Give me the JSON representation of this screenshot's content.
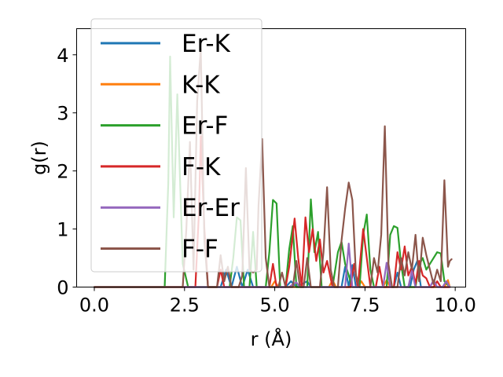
{
  "chart_data": {
    "type": "line",
    "title": "",
    "xlabel": "r (Å)",
    "ylabel": "g(r)",
    "xlim": [
      -0.49,
      10.29
    ],
    "ylim": [
      0,
      4.45
    ],
    "xticks": [
      0.0,
      2.5,
      5.0,
      7.5,
      10.0
    ],
    "xtick_labels": [
      "0.0",
      "2.5",
      "5.0",
      "7.5",
      "10.0"
    ],
    "yticks": [
      0,
      1,
      2,
      3,
      4
    ],
    "ytick_labels": [
      "0",
      "1",
      "2",
      "3",
      "4"
    ],
    "grid": false,
    "legend_position": "top-left",
    "series": [
      {
        "name": "Er-K",
        "color": "#1f77b4",
        "points": [
          [
            0.0,
            0
          ],
          [
            3.5,
            0
          ],
          [
            3.65,
            0.3
          ],
          [
            3.8,
            0
          ],
          [
            3.95,
            0.35
          ],
          [
            4.1,
            0
          ],
          [
            4.25,
            0.3
          ],
          [
            4.4,
            0
          ],
          [
            5.3,
            0
          ],
          [
            5.45,
            0.1
          ],
          [
            5.6,
            0
          ],
          [
            5.9,
            0.1
          ],
          [
            6.0,
            0
          ],
          [
            6.85,
            0
          ],
          [
            6.95,
            0.35
          ],
          [
            7.05,
            0
          ],
          [
            7.15,
            0.38
          ],
          [
            7.25,
            0
          ],
          [
            8.3,
            0
          ],
          [
            8.4,
            0.25
          ],
          [
            8.5,
            0
          ],
          [
            8.75,
            0
          ],
          [
            8.85,
            0.3
          ],
          [
            8.95,
            0.45
          ],
          [
            9.05,
            0
          ],
          [
            9.85,
            0
          ]
        ]
      },
      {
        "name": "K-K",
        "color": "#ff7f0e",
        "points": [
          [
            0.0,
            0
          ],
          [
            4.9,
            0
          ],
          [
            5.0,
            0.1
          ],
          [
            5.1,
            0
          ],
          [
            6.5,
            0
          ],
          [
            6.6,
            0.12
          ],
          [
            6.7,
            0
          ],
          [
            7.3,
            0
          ],
          [
            7.4,
            0.1
          ],
          [
            7.5,
            0
          ],
          [
            8.0,
            0
          ],
          [
            8.1,
            0.12
          ],
          [
            8.2,
            0
          ],
          [
            9.7,
            0
          ],
          [
            9.8,
            0.12
          ],
          [
            9.85,
            0
          ]
        ]
      },
      {
        "name": "Er-F",
        "color": "#2ca02c",
        "points": [
          [
            0.0,
            0
          ],
          [
            1.95,
            0
          ],
          [
            2.05,
            1.8
          ],
          [
            2.1,
            3.97
          ],
          [
            2.2,
            1.2
          ],
          [
            2.3,
            3.32
          ],
          [
            2.45,
            0.4
          ],
          [
            2.6,
            0
          ],
          [
            3.75,
            0
          ],
          [
            3.85,
            0.5
          ],
          [
            3.95,
            1.2
          ],
          [
            4.05,
            1.15
          ],
          [
            4.15,
            0
          ],
          [
            4.3,
            0
          ],
          [
            4.4,
            0.95
          ],
          [
            4.5,
            0
          ],
          [
            4.75,
            0
          ],
          [
            4.85,
            0.6
          ],
          [
            4.95,
            1.5
          ],
          [
            5.05,
            1.44
          ],
          [
            5.15,
            0
          ],
          [
            5.3,
            0
          ],
          [
            5.4,
            0.65
          ],
          [
            5.5,
            1.05
          ],
          [
            5.6,
            0
          ],
          [
            5.9,
            0
          ],
          [
            6.0,
            1.51
          ],
          [
            6.1,
            0.6
          ],
          [
            6.2,
            0.95
          ],
          [
            6.3,
            0
          ],
          [
            6.6,
            0
          ],
          [
            6.75,
            0.6
          ],
          [
            6.85,
            0.78
          ],
          [
            6.95,
            0.4
          ],
          [
            7.05,
            0.2
          ],
          [
            7.15,
            0
          ],
          [
            7.35,
            0
          ],
          [
            7.45,
            0.9
          ],
          [
            7.55,
            1.25
          ],
          [
            7.65,
            0.3
          ],
          [
            7.75,
            0
          ],
          [
            8.1,
            0
          ],
          [
            8.2,
            0.9
          ],
          [
            8.3,
            1.05
          ],
          [
            8.4,
            1.02
          ],
          [
            8.5,
            0.4
          ],
          [
            8.6,
            0
          ],
          [
            8.9,
            0
          ],
          [
            9.0,
            0.38
          ],
          [
            9.1,
            0.5
          ],
          [
            9.2,
            0.3
          ],
          [
            9.35,
            0.45
          ],
          [
            9.5,
            0.6
          ],
          [
            9.6,
            0.58
          ],
          [
            9.7,
            0.1
          ],
          [
            9.85,
            0
          ]
        ]
      },
      {
        "name": "F-K",
        "color": "#d62728",
        "points": [
          [
            0.0,
            0
          ],
          [
            2.8,
            0
          ],
          [
            2.9,
            1.3
          ],
          [
            2.95,
            2.6
          ],
          [
            3.05,
            1.0
          ],
          [
            3.15,
            0
          ],
          [
            3.4,
            0
          ],
          [
            3.5,
            0.3
          ],
          [
            3.6,
            0
          ],
          [
            4.85,
            0
          ],
          [
            4.95,
            0.4
          ],
          [
            5.05,
            0
          ],
          [
            5.3,
            0
          ],
          [
            5.4,
            0.35
          ],
          [
            5.55,
            1.18
          ],
          [
            5.65,
            0.5
          ],
          [
            5.75,
            0
          ],
          [
            5.85,
            1.2
          ],
          [
            5.95,
            0.6
          ],
          [
            6.05,
            1.0
          ],
          [
            6.15,
            0.45
          ],
          [
            6.25,
            0.82
          ],
          [
            6.35,
            0.25
          ],
          [
            6.45,
            0.45
          ],
          [
            6.6,
            0
          ],
          [
            7.1,
            0
          ],
          [
            7.2,
            0.4
          ],
          [
            7.3,
            0
          ],
          [
            7.45,
            1.0
          ],
          [
            7.55,
            0.5
          ],
          [
            7.65,
            0
          ],
          [
            7.8,
            0
          ],
          [
            7.9,
            0.35
          ],
          [
            8.0,
            0
          ],
          [
            8.3,
            0
          ],
          [
            8.4,
            0.6
          ],
          [
            8.5,
            0.3
          ],
          [
            8.6,
            0.7
          ],
          [
            8.7,
            0.2
          ],
          [
            8.8,
            0.35
          ],
          [
            8.9,
            0.05
          ],
          [
            9.0,
            0.45
          ],
          [
            9.1,
            0.2
          ],
          [
            9.2,
            0.15
          ],
          [
            9.3,
            0
          ],
          [
            9.4,
            0
          ],
          [
            9.5,
            0.1
          ],
          [
            9.6,
            0
          ],
          [
            9.85,
            0
          ]
        ]
      },
      {
        "name": "Er-Er",
        "color": "#9467bd",
        "points": [
          [
            0.0,
            0
          ],
          [
            5.4,
            0
          ],
          [
            5.5,
            0.05
          ],
          [
            5.6,
            0.08
          ],
          [
            5.7,
            0
          ],
          [
            6.95,
            0
          ],
          [
            7.05,
            0.75
          ],
          [
            7.15,
            0
          ],
          [
            8.0,
            0
          ],
          [
            8.1,
            0.42
          ],
          [
            8.2,
            0
          ],
          [
            8.7,
            0
          ],
          [
            8.8,
            0.28
          ],
          [
            8.9,
            0
          ],
          [
            9.3,
            0
          ],
          [
            9.4,
            0.12
          ],
          [
            9.5,
            0
          ],
          [
            9.65,
            0
          ],
          [
            9.75,
            0.1
          ],
          [
            9.85,
            0
          ]
        ]
      },
      {
        "name": "F-F",
        "color": "#8c564b",
        "points": [
          [
            0.0,
            0
          ],
          [
            2.45,
            0
          ],
          [
            2.55,
            1.0
          ],
          [
            2.65,
            2.5
          ],
          [
            2.75,
            0.3
          ],
          [
            2.85,
            3.2
          ],
          [
            2.95,
            4.1
          ],
          [
            3.05,
            0.8
          ],
          [
            3.15,
            0
          ],
          [
            3.4,
            0
          ],
          [
            3.5,
            0.55
          ],
          [
            3.6,
            0.1
          ],
          [
            3.7,
            0.35
          ],
          [
            3.8,
            0
          ],
          [
            4.0,
            0
          ],
          [
            4.1,
            0.2
          ],
          [
            4.2,
            2.05
          ],
          [
            4.3,
            0.3
          ],
          [
            4.4,
            0.25
          ],
          [
            4.5,
            0.3
          ],
          [
            4.55,
            1.4
          ],
          [
            4.65,
            2.55
          ],
          [
            4.75,
            0.5
          ],
          [
            4.85,
            0
          ],
          [
            5.1,
            0
          ],
          [
            5.2,
            0.25
          ],
          [
            5.3,
            0
          ],
          [
            5.5,
            0
          ],
          [
            5.6,
            0.45
          ],
          [
            5.7,
            0
          ],
          [
            5.8,
            0
          ],
          [
            5.9,
            0.5
          ],
          [
            6.0,
            0
          ],
          [
            6.25,
            0
          ],
          [
            6.35,
            0.6
          ],
          [
            6.45,
            1.72
          ],
          [
            6.55,
            0.3
          ],
          [
            6.65,
            0
          ],
          [
            6.75,
            0
          ],
          [
            6.85,
            0.8
          ],
          [
            6.95,
            1.35
          ],
          [
            7.05,
            1.8
          ],
          [
            7.15,
            1.5
          ],
          [
            7.25,
            0.2
          ],
          [
            7.35,
            0
          ],
          [
            7.65,
            0
          ],
          [
            7.75,
            0.5
          ],
          [
            7.85,
            0.25
          ],
          [
            7.95,
            0.9
          ],
          [
            8.05,
            2.77
          ],
          [
            8.15,
            0.4
          ],
          [
            8.25,
            0
          ],
          [
            8.4,
            0
          ],
          [
            8.5,
            0.5
          ],
          [
            8.6,
            0.2
          ],
          [
            8.7,
            0.6
          ],
          [
            8.8,
            0.3
          ],
          [
            8.9,
            0.9
          ],
          [
            9.0,
            0.1
          ],
          [
            9.1,
            0.85
          ],
          [
            9.2,
            0.55
          ],
          [
            9.3,
            0.3
          ],
          [
            9.4,
            0.05
          ],
          [
            9.5,
            0.3
          ],
          [
            9.6,
            0.1
          ],
          [
            9.7,
            1.84
          ],
          [
            9.8,
            0.35
          ],
          [
            9.85,
            0.45
          ],
          [
            9.9,
            0.48
          ]
        ]
      }
    ]
  }
}
